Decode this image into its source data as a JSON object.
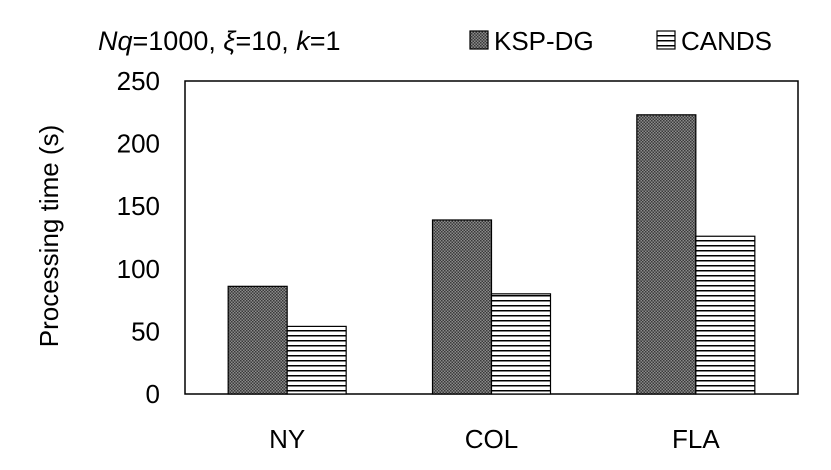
{
  "chart_data": {
    "type": "bar",
    "title": "Nq=1000, ξ=10, k=1",
    "title_parts": [
      {
        "text": "Nq",
        "italic": true
      },
      {
        "text": "=1000, ",
        "italic": false
      },
      {
        "text": "ξ",
        "italic": true
      },
      {
        "text": "=10, ",
        "italic": false
      },
      {
        "text": "k",
        "italic": true
      },
      {
        "text": "=1",
        "italic": false
      }
    ],
    "xlabel": "",
    "ylabel": "Processing time (s)",
    "ylim": [
      0,
      250
    ],
    "yticks": [
      "0",
      "50",
      "100",
      "150",
      "200",
      "250"
    ],
    "categories": [
      "NY",
      "COL",
      "FLA"
    ],
    "series": [
      {
        "name": "KSP-DG",
        "values": [
          86,
          139,
          223
        ],
        "pattern": "dots"
      },
      {
        "name": "CANDS",
        "values": [
          54,
          80,
          126
        ],
        "pattern": "hlines"
      }
    ],
    "grid": false,
    "legend_position": "top-right"
  }
}
